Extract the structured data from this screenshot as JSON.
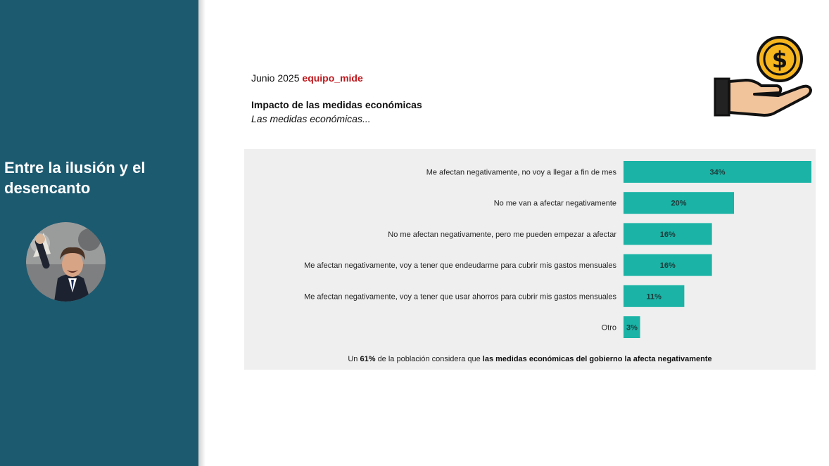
{
  "sidebar": {
    "title": "Entre la ilusión y el desencanto",
    "avatar": "avatar-photo"
  },
  "header": {
    "date": "Junio 2025",
    "brand": "equipo_mide",
    "icon": "hand-coin-icon"
  },
  "colors": {
    "sidebar": "#1c5a70",
    "bar": "#1ab3a6",
    "brand": "#c0161b",
    "panel": "#efefef"
  },
  "chart_data": {
    "type": "bar",
    "orientation": "horizontal",
    "title": "Impacto de las medidas económicas",
    "subtitle": "Las medidas económicas...",
    "categories": [
      "Me afectan negativamente, no voy a llegar a fin de mes",
      "No me van a afectar negativamente",
      "No me afectan negativamente, pero me pueden empezar a afectar",
      "Me afectan negativamente, voy a tener que endeudarme para cubrir mis gastos mensuales",
      "Me afectan negativamente, voy a tener que usar ahorros para cubrir mis gastos mensuales",
      "Otro"
    ],
    "values": [
      34,
      20,
      16,
      16,
      11,
      3
    ],
    "value_labels": [
      "34%",
      "20%",
      "16%",
      "16%",
      "11%",
      "3%"
    ],
    "xlim": [
      0,
      34
    ],
    "grid": false,
    "legend": "none"
  },
  "footnote": {
    "prefix": "Un",
    "percent": "61%",
    "middle": "de la población considera que",
    "emphasis": "las medidas económicas del gobierno la afecta negativamente"
  }
}
